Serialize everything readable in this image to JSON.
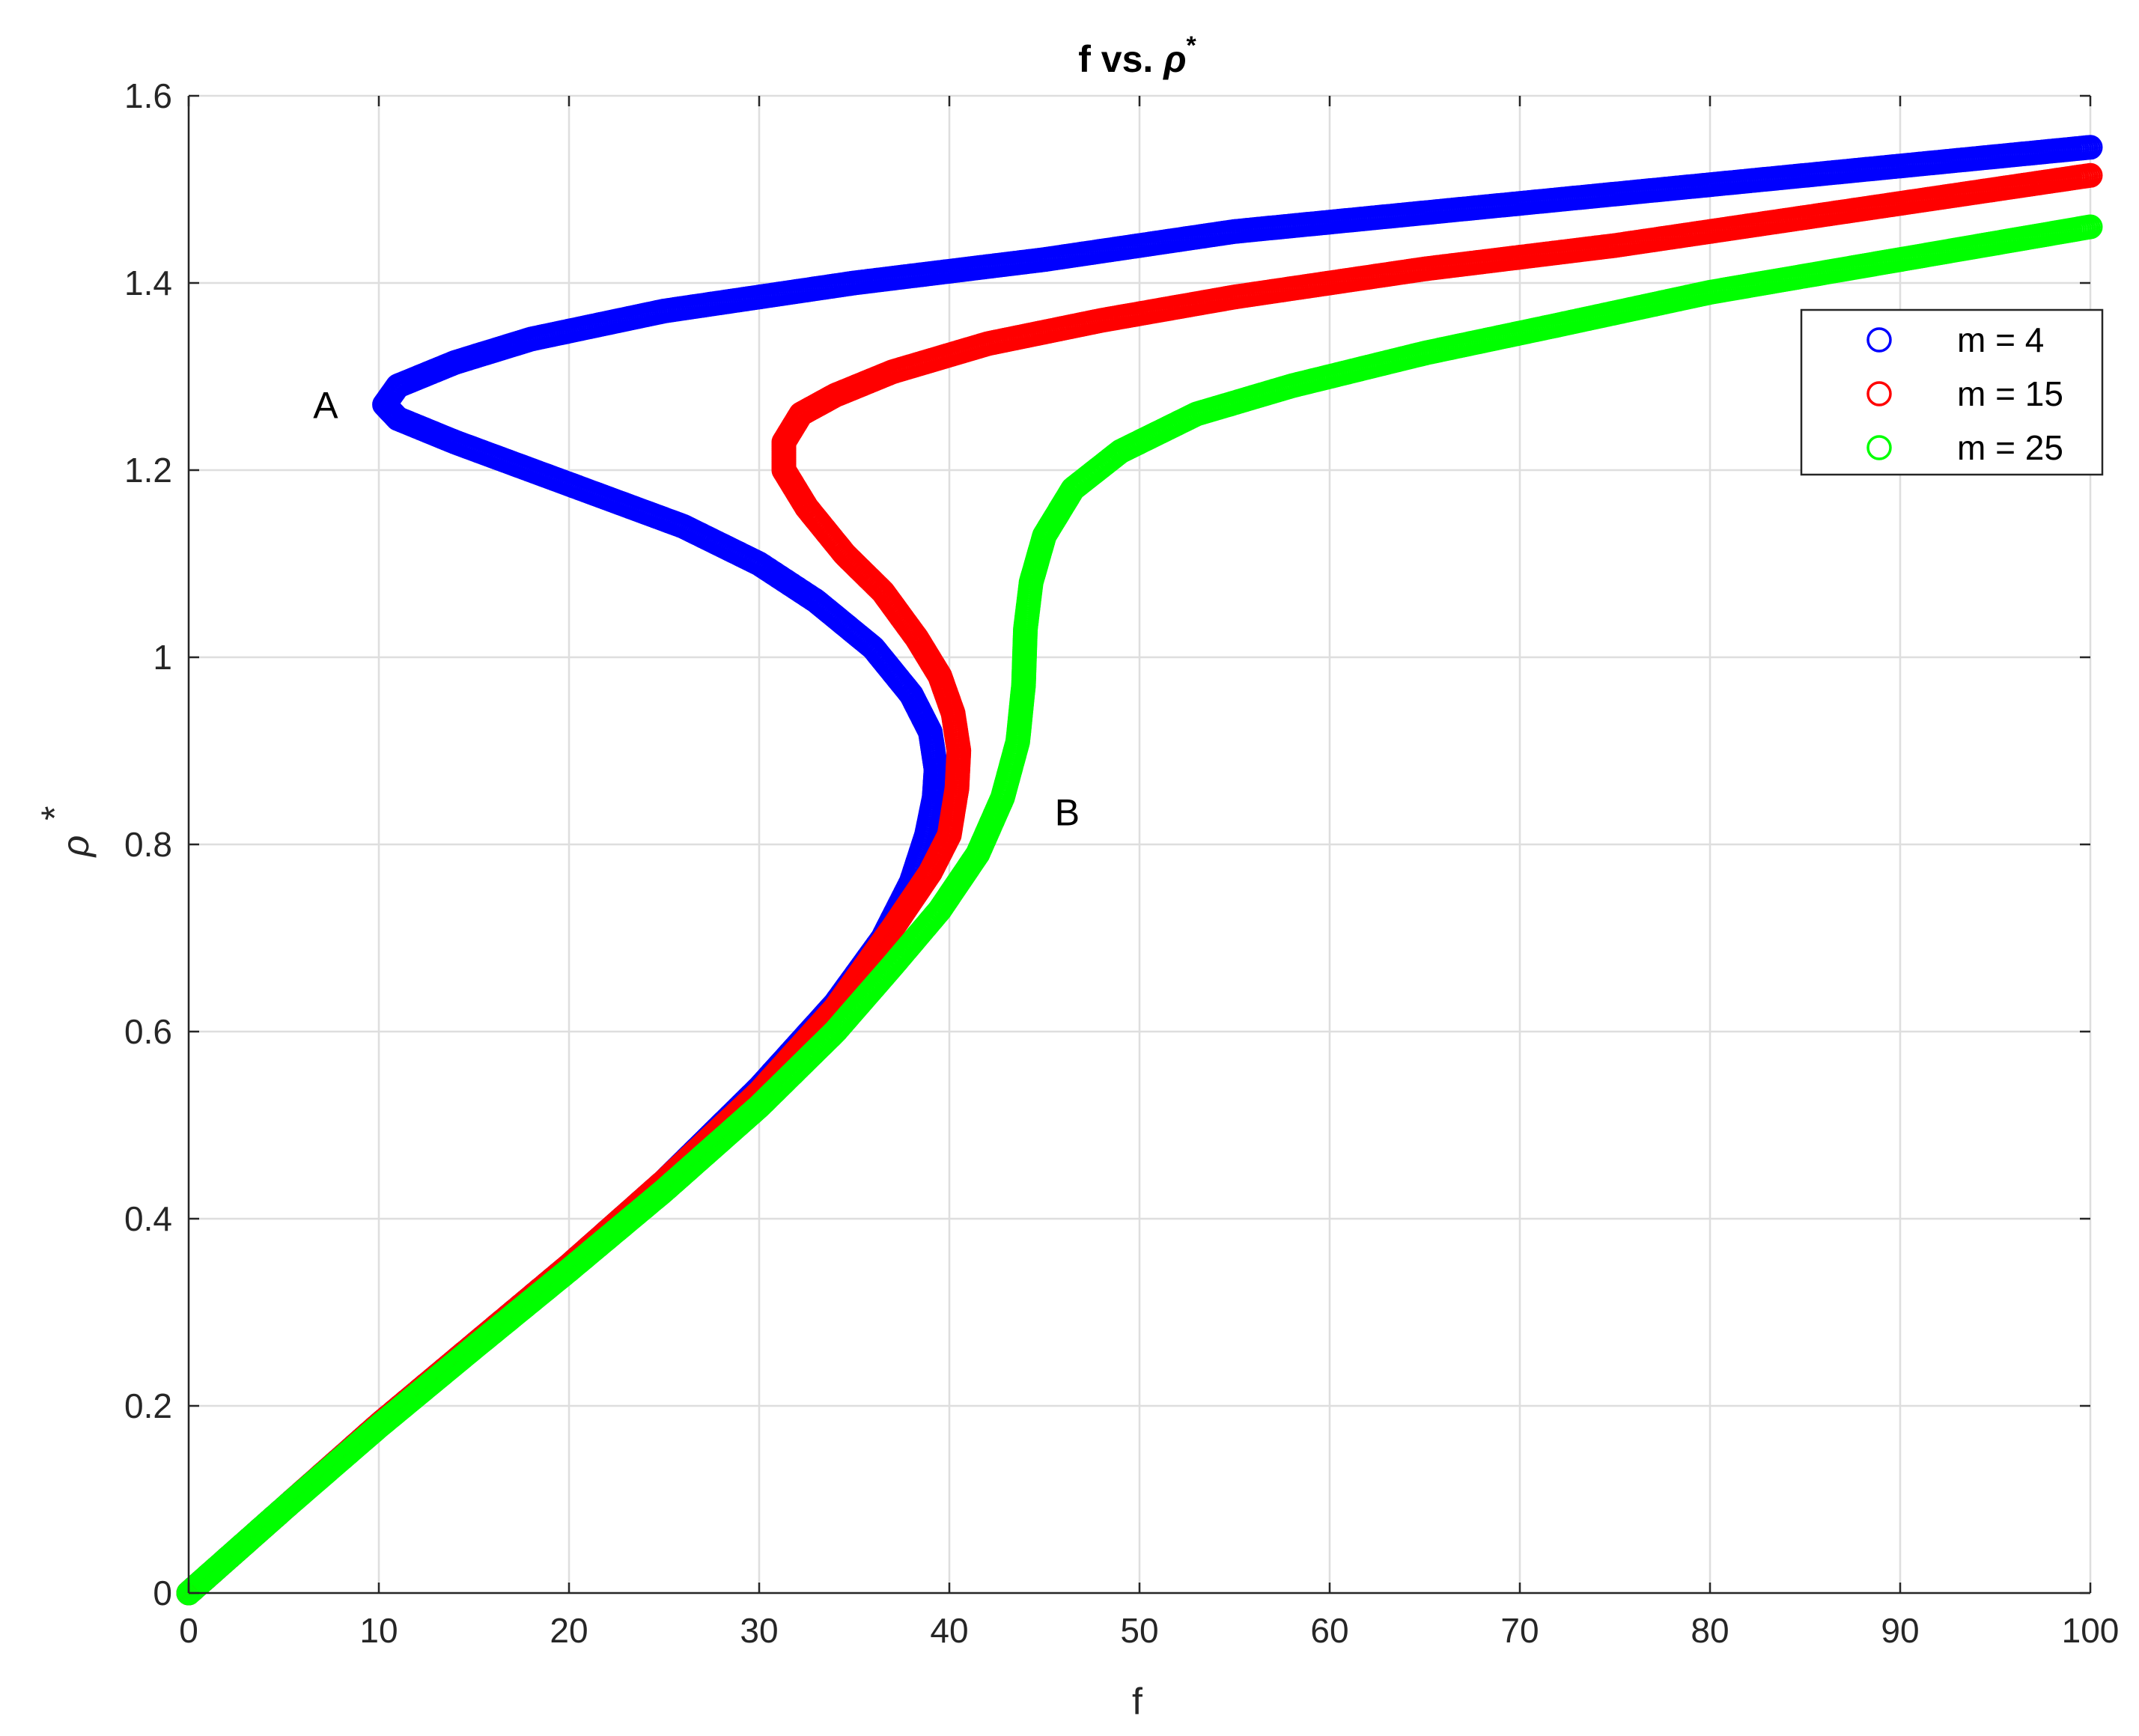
{
  "chart_data": {
    "type": "scatter",
    "title": "f vs. ",
    "title_symbol": "ρ",
    "title_sup": "*",
    "xlabel": "f",
    "ylabel": "ρ",
    "ylabel_sup": "*",
    "xlim": [
      0,
      100
    ],
    "ylim": [
      0,
      1.6
    ],
    "x_ticks": [
      "0",
      "10",
      "20",
      "30",
      "40",
      "50",
      "60",
      "70",
      "80",
      "90",
      "100"
    ],
    "y_ticks": [
      "0",
      "0.2",
      "0.4",
      "0.6",
      "0.8",
      "1",
      "1.2",
      "1.4",
      "1.6"
    ],
    "grid": true,
    "marker": "open-circle",
    "legend": {
      "position": "top-right"
    },
    "series": [
      {
        "name": "m = 4",
        "color": "#0000ff",
        "points": [
          [
            0,
            0
          ],
          [
            5,
            0.09
          ],
          [
            10,
            0.18
          ],
          [
            15,
            0.265
          ],
          [
            20,
            0.35
          ],
          [
            25,
            0.44
          ],
          [
            30,
            0.54
          ],
          [
            34,
            0.63
          ],
          [
            36.5,
            0.7
          ],
          [
            38,
            0.76
          ],
          [
            38.8,
            0.81
          ],
          [
            39.2,
            0.85
          ],
          [
            39.3,
            0.88
          ],
          [
            39,
            0.92
          ],
          [
            38,
            0.96
          ],
          [
            36,
            1.01
          ],
          [
            33,
            1.06
          ],
          [
            30,
            1.1
          ],
          [
            26,
            1.14
          ],
          [
            22,
            1.17
          ],
          [
            18,
            1.2
          ],
          [
            14,
            1.23
          ],
          [
            11,
            1.255
          ],
          [
            10.3,
            1.27
          ],
          [
            11,
            1.29
          ],
          [
            14,
            1.315
          ],
          [
            18,
            1.34
          ],
          [
            25,
            1.37
          ],
          [
            35,
            1.4
          ],
          [
            45,
            1.425
          ],
          [
            55,
            1.455
          ],
          [
            65,
            1.475
          ],
          [
            75,
            1.495
          ],
          [
            85,
            1.515
          ],
          [
            100,
            1.545
          ]
        ]
      },
      {
        "name": "m = 15",
        "color": "#ff0000",
        "points": [
          [
            0,
            0
          ],
          [
            5,
            0.09
          ],
          [
            10,
            0.18
          ],
          [
            15,
            0.265
          ],
          [
            20,
            0.35
          ],
          [
            25,
            0.44
          ],
          [
            30,
            0.535
          ],
          [
            34,
            0.625
          ],
          [
            37,
            0.71
          ],
          [
            39,
            0.77
          ],
          [
            40,
            0.81
          ],
          [
            40.4,
            0.86
          ],
          [
            40.5,
            0.9
          ],
          [
            40.2,
            0.94
          ],
          [
            39.5,
            0.98
          ],
          [
            38.3,
            1.02
          ],
          [
            36.5,
            1.07
          ],
          [
            34.5,
            1.11
          ],
          [
            32.5,
            1.16
          ],
          [
            31.3,
            1.2
          ],
          [
            31.3,
            1.23
          ],
          [
            32.2,
            1.26
          ],
          [
            34,
            1.28
          ],
          [
            37,
            1.305
          ],
          [
            42,
            1.335
          ],
          [
            48,
            1.36
          ],
          [
            55,
            1.385
          ],
          [
            65,
            1.415
          ],
          [
            75,
            1.44
          ],
          [
            85,
            1.47
          ],
          [
            100,
            1.515
          ]
        ]
      },
      {
        "name": "m = 25",
        "color": "#00ff00",
        "points": [
          [
            0,
            0
          ],
          [
            5,
            0.09
          ],
          [
            10,
            0.178
          ],
          [
            15,
            0.262
          ],
          [
            20,
            0.345
          ],
          [
            25,
            0.43
          ],
          [
            30,
            0.52
          ],
          [
            34,
            0.6
          ],
          [
            37,
            0.67
          ],
          [
            39.5,
            0.73
          ],
          [
            41.5,
            0.79
          ],
          [
            42.8,
            0.85
          ],
          [
            43.6,
            0.91
          ],
          [
            43.9,
            0.97
          ],
          [
            44,
            1.03
          ],
          [
            44.3,
            1.08
          ],
          [
            45,
            1.13
          ],
          [
            46.5,
            1.18
          ],
          [
            49,
            1.22
          ],
          [
            53,
            1.26
          ],
          [
            58,
            1.29
          ],
          [
            65,
            1.325
          ],
          [
            72,
            1.355
          ],
          [
            80,
            1.39
          ],
          [
            90,
            1.425
          ],
          [
            100,
            1.46
          ]
        ]
      }
    ],
    "annotations": [
      {
        "text": "A",
        "x": 7.2,
        "y": 1.27
      },
      {
        "text": "B",
        "x": 46.2,
        "y": 0.835
      }
    ]
  }
}
